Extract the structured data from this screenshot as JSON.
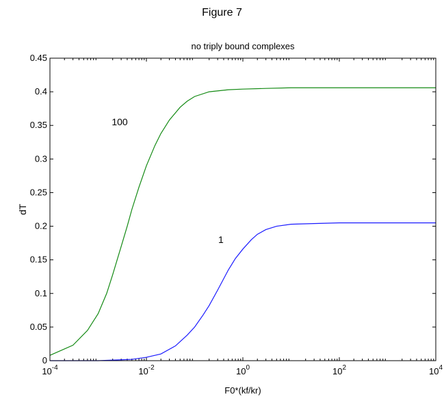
{
  "figure_title": "Figure 7",
  "chart_data": {
    "type": "line",
    "title": "no triply bound complexes",
    "xlabel": "F0*(kf/kr)",
    "ylabel": "dT",
    "x_scale": "log",
    "xlim": [
      0.0001,
      10000
    ],
    "ylim": [
      0,
      0.45
    ],
    "x_ticks": [
      {
        "value": 0.0001,
        "base": "10",
        "exp": "-4"
      },
      {
        "value": 0.01,
        "base": "10",
        "exp": "-2"
      },
      {
        "value": 1,
        "base": "10",
        "exp": "0"
      },
      {
        "value": 100,
        "base": "10",
        "exp": "2"
      },
      {
        "value": 10000,
        "base": "10",
        "exp": "4"
      }
    ],
    "y_ticks": [
      0,
      0.05,
      0.1,
      0.15,
      0.2,
      0.25,
      0.3,
      0.35,
      0.4,
      0.45
    ],
    "grid": false,
    "legend": "none",
    "series": [
      {
        "color": "#138a13",
        "label": "100",
        "x": [
          0.0001,
          0.0003,
          0.0006,
          0.001,
          0.0015,
          0.002,
          0.003,
          0.004,
          0.005,
          0.007,
          0.01,
          0.015,
          0.02,
          0.03,
          0.05,
          0.07,
          0.1,
          0.2,
          0.5,
          1,
          3,
          10,
          100,
          1000,
          10000
        ],
        "y": [
          0.008,
          0.023,
          0.045,
          0.07,
          0.1,
          0.128,
          0.17,
          0.2,
          0.225,
          0.258,
          0.29,
          0.32,
          0.338,
          0.358,
          0.377,
          0.386,
          0.393,
          0.4,
          0.403,
          0.404,
          0.405,
          0.406,
          0.406,
          0.406,
          0.406
        ]
      },
      {
        "color": "#1a1aff",
        "label": "1",
        "x": [
          0.0001,
          0.001,
          0.005,
          0.01,
          0.02,
          0.04,
          0.07,
          0.1,
          0.15,
          0.2,
          0.3,
          0.5,
          0.7,
          1,
          1.5,
          2,
          3,
          5,
          10,
          30,
          100,
          1000,
          10000
        ],
        "y": [
          0.0,
          0.0,
          0.002,
          0.005,
          0.01,
          0.022,
          0.038,
          0.05,
          0.068,
          0.082,
          0.105,
          0.135,
          0.152,
          0.166,
          0.18,
          0.188,
          0.195,
          0.2,
          0.203,
          0.204,
          0.205,
          0.205,
          0.205
        ]
      }
    ],
    "annotations": [
      {
        "text": "100",
        "x": 0.0028,
        "y": 0.35
      },
      {
        "text": "1",
        "x": 0.35,
        "y": 0.175
      }
    ]
  }
}
